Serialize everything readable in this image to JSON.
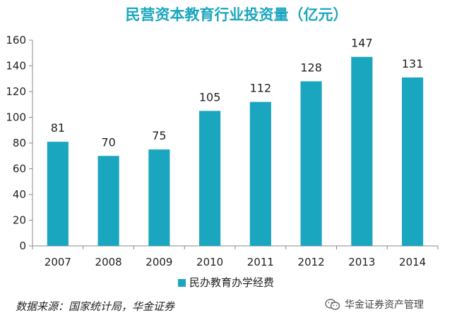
{
  "chart_data": {
    "type": "bar",
    "title": "民营资本教育行业投资量（亿元）",
    "categories": [
      "2007",
      "2008",
      "2009",
      "2010",
      "2011",
      "2012",
      "2013",
      "2014"
    ],
    "series": [
      {
        "name": "民办教育办学经费",
        "values": [
          81,
          70,
          75,
          105,
          112,
          128,
          147,
          131
        ]
      }
    ],
    "ylim": [
      0,
      160
    ],
    "yticks": [
      0,
      20,
      40,
      60,
      80,
      100,
      120,
      140,
      160
    ],
    "xlabel": "",
    "ylabel": "",
    "grid": false,
    "legend_position": "bottom-center",
    "data_labels": true,
    "colors": {
      "bar": "#1BA6BF",
      "title": "#1BA6BF",
      "axis": "#888888"
    }
  },
  "footer": {
    "source": "数据来源：国家统计局，华金证券",
    "watermark": "华金证券资产管理",
    "watermark_icon": "wechat-icon"
  }
}
